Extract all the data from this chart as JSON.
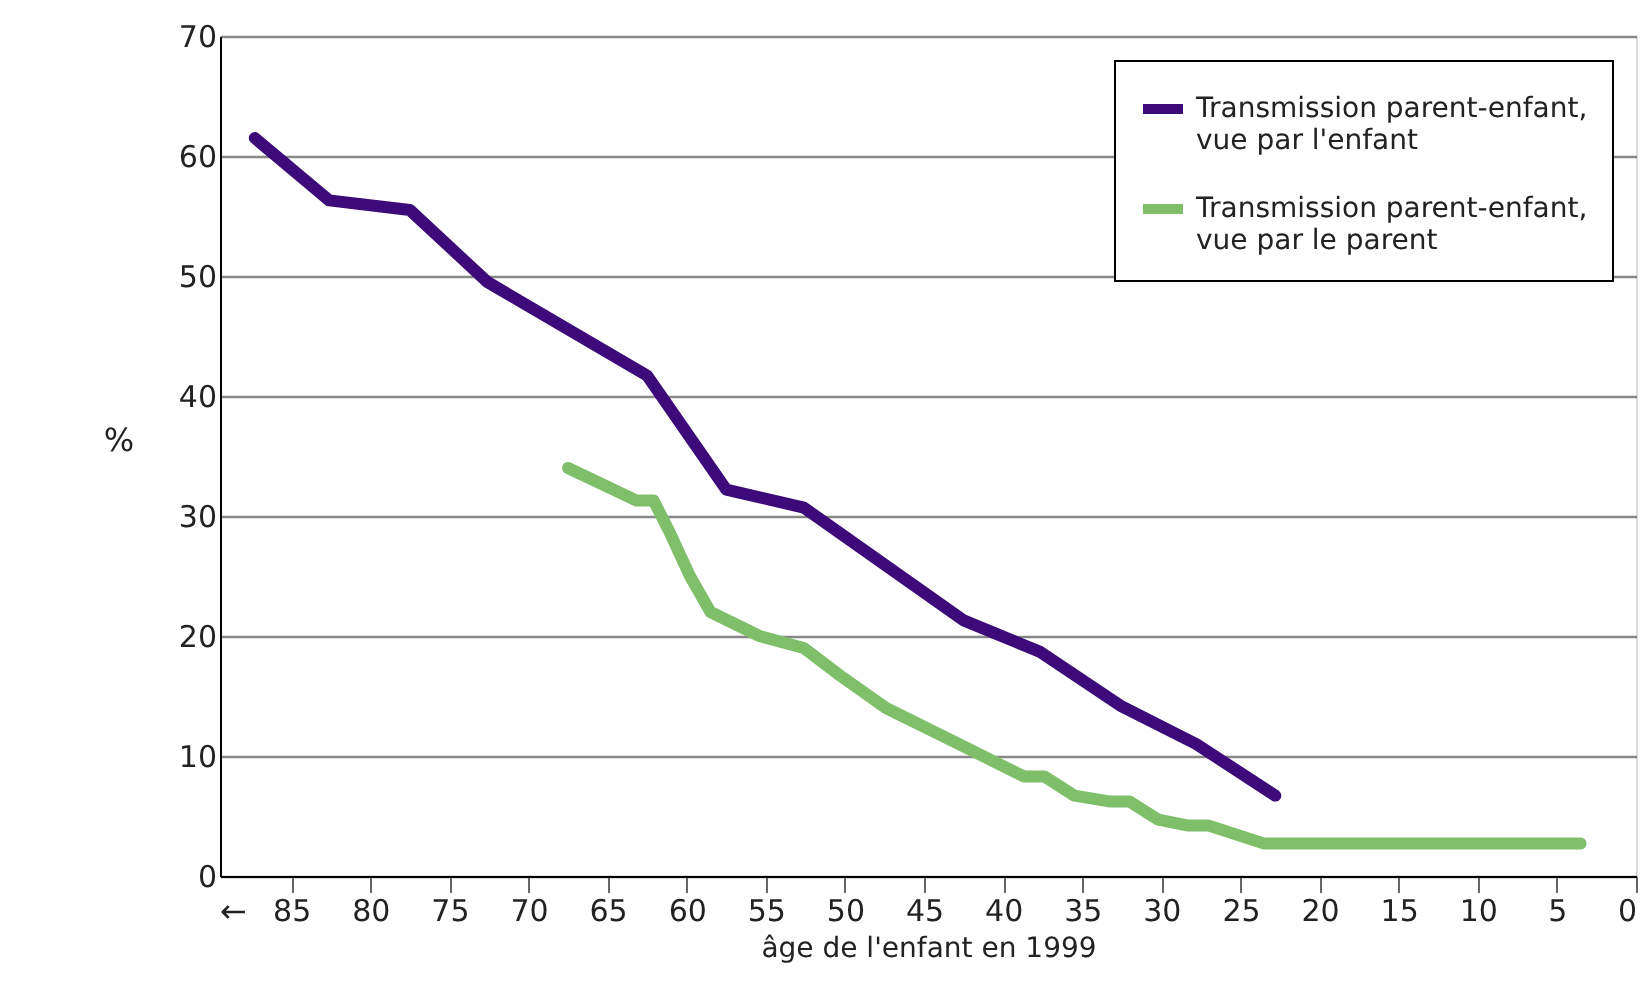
{
  "chart_data": {
    "type": "line",
    "xlabel": "âge de l'enfant en 1999",
    "ylabel": "%",
    "xlim": [
      89.5,
      0
    ],
    "xticks": [
      85,
      80,
      75,
      70,
      65,
      60,
      55,
      50,
      45,
      40,
      35,
      30,
      25,
      20,
      15,
      10,
      5,
      0
    ],
    "ylim": [
      0,
      70
    ],
    "yticks": [
      0,
      10,
      20,
      30,
      40,
      50,
      60,
      70
    ],
    "grid": "y",
    "legend": "top right",
    "annotations": [
      "←"
    ],
    "series": [
      {
        "name": "Transmission parent-enfant, vue par l'enfant",
        "color": "#3d0a7a",
        "x": [
          87.3,
          82.6,
          77.5,
          72.6,
          62.5,
          57.5,
          52.6,
          42.5,
          37.7,
          32.6,
          27.8,
          22.8
        ],
        "values": [
          61.5,
          56.3,
          55.5,
          49.5,
          41.7,
          32.2,
          30.7,
          21.3,
          18.7,
          14.2,
          11,
          6.7
        ]
      },
      {
        "name": "Transmission parent-enfant, vue par le parent",
        "color": "#7fbf6a",
        "x": [
          67.5,
          63.2,
          62.1,
          61.1,
          59.8,
          58.5,
          55.4,
          52.6,
          50.3,
          47.4,
          42.5,
          38.7,
          37.4,
          35.5,
          33.2,
          32,
          30.2,
          28.3,
          27,
          23.5,
          15.3,
          10,
          3.5
        ],
        "values": [
          34,
          31.3,
          31.3,
          28.7,
          25,
          22,
          20,
          19,
          16.7,
          14,
          10.8,
          8.3,
          8.3,
          6.7,
          6.2,
          6.2,
          4.7,
          4.2,
          4.2,
          2.7,
          2.7,
          2.7,
          2.7
        ]
      }
    ]
  }
}
